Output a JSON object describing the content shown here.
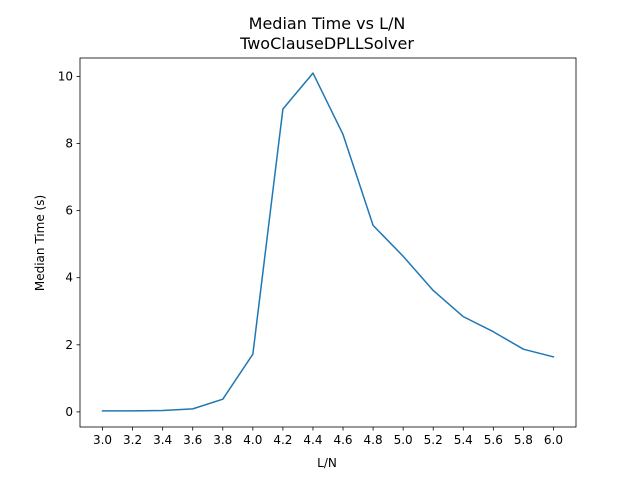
{
  "chart_data": {
    "type": "line",
    "title": "Median Time vs L/N",
    "subtitle": "TwoClauseDPLLSolver",
    "xlabel": "L/N",
    "ylabel": "Median Time (s)",
    "x": [
      3.0,
      3.2,
      3.4,
      3.6,
      3.8,
      4.0,
      4.2,
      4.4,
      4.6,
      4.8,
      5.0,
      5.2,
      5.4,
      5.6,
      5.8,
      6.0
    ],
    "x_tick_labels": [
      "3.0",
      "3.2",
      "3.4",
      "3.6",
      "3.8",
      "4.0",
      "4.2",
      "4.4",
      "4.6",
      "4.8",
      "5.0",
      "5.2",
      "5.4",
      "5.6",
      "5.8",
      "6.0"
    ],
    "y_ticks": [
      0,
      2,
      4,
      6,
      8,
      10
    ],
    "y_tick_labels": [
      "0",
      "2",
      "4",
      "6",
      "8",
      "10"
    ],
    "xlim": [
      2.85,
      6.15
    ],
    "ylim": [
      -0.45,
      10.55
    ],
    "grid": false,
    "legend": "none",
    "series": [
      {
        "color": "#1f77b4",
        "values": [
          0.03,
          0.03,
          0.04,
          0.09,
          0.38,
          1.72,
          9.03,
          10.1,
          8.27,
          5.56,
          4.64,
          3.62,
          2.84,
          2.39,
          1.87,
          1.64
        ]
      }
    ]
  }
}
